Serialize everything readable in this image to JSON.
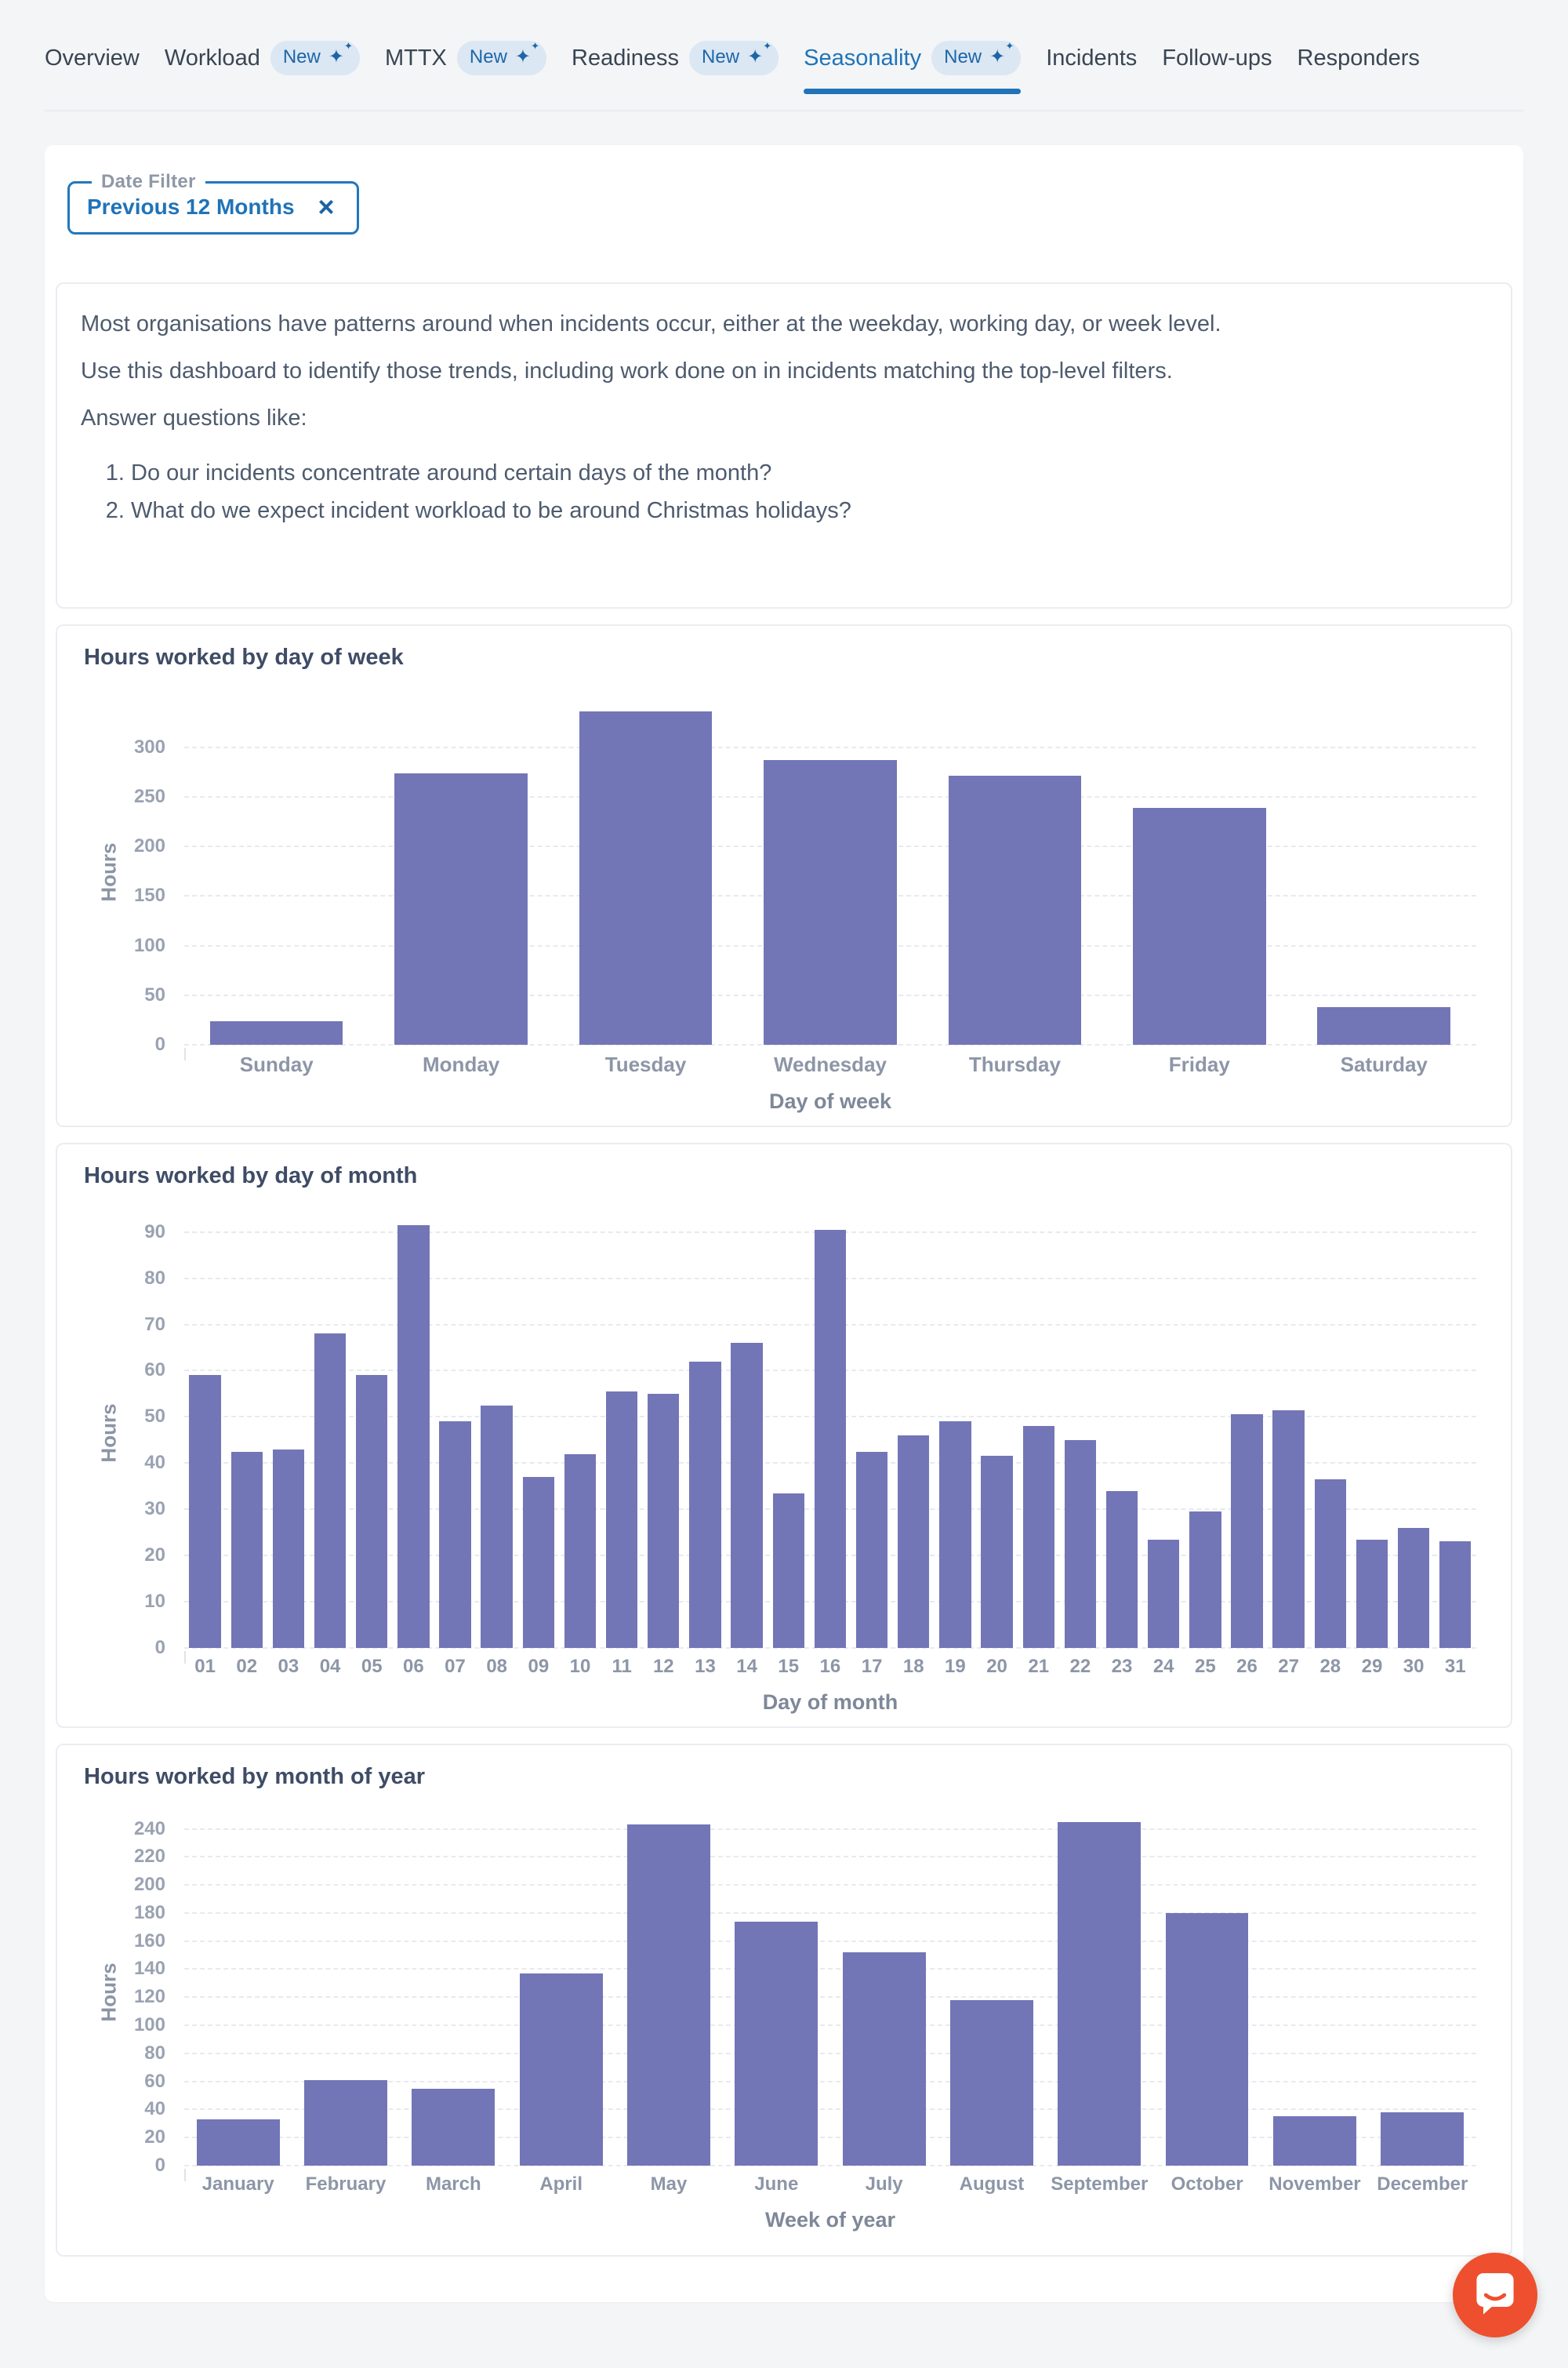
{
  "nav": {
    "items": [
      {
        "label": "Overview",
        "badge": false,
        "active": false
      },
      {
        "label": "Workload",
        "badge": true,
        "active": false
      },
      {
        "label": "MTTX",
        "badge": true,
        "active": false
      },
      {
        "label": "Readiness",
        "badge": true,
        "active": false
      },
      {
        "label": "Seasonality",
        "badge": true,
        "active": true
      },
      {
        "label": "Incidents",
        "badge": false,
        "active": false
      },
      {
        "label": "Follow-ups",
        "badge": false,
        "active": false
      },
      {
        "label": "Responders",
        "badge": false,
        "active": false
      }
    ],
    "badge_label": "New",
    "badge_icon": "sparkle-icon"
  },
  "filter": {
    "label": "Date Filter",
    "value": "Previous 12 Months",
    "clear_icon": "×"
  },
  "intro": {
    "paragraphs": [
      "Most organisations have patterns around when incidents occur, either at the weekday, working day, or week level.",
      "Use this dashboard to identify those trends, including work done on in incidents matching the top-level filters.",
      "Answer questions like:"
    ],
    "questions": [
      "Do our incidents concentrate around certain days of the month?",
      "What do we expect incident workload to be around Christmas holidays?"
    ]
  },
  "colors": {
    "bar": "#7276b6",
    "accent": "#2073b8",
    "badge_bg": "#dbe7f3",
    "chat_button": "#ee4f2e"
  },
  "chart_data": [
    {
      "type": "bar",
      "title": "Hours worked by day of week",
      "xlabel": "Day of week",
      "ylabel": "Hours",
      "categories": [
        "Sunday",
        "Monday",
        "Tuesday",
        "Wednesday",
        "Thursday",
        "Friday",
        "Saturday"
      ],
      "values": [
        24,
        274,
        336,
        287,
        271,
        239,
        38
      ],
      "ylim": [
        0,
        348
      ],
      "yticks": [
        0,
        50,
        100,
        150,
        200,
        250,
        300
      ],
      "grid": true,
      "legend": false
    },
    {
      "type": "bar",
      "title": "Hours worked by day of month",
      "xlabel": "Day of month",
      "ylabel": "Hours",
      "categories": [
        "01",
        "02",
        "03",
        "04",
        "05",
        "06",
        "07",
        "08",
        "09",
        "10",
        "11",
        "12",
        "13",
        "14",
        "15",
        "16",
        "17",
        "18",
        "19",
        "20",
        "21",
        "22",
        "23",
        "24",
        "25",
        "26",
        "27",
        "28",
        "29",
        "30",
        "31"
      ],
      "values": [
        59,
        42.5,
        43,
        68,
        59,
        91.5,
        49,
        52.5,
        37,
        42,
        55.5,
        55,
        62,
        66,
        33.5,
        90.5,
        42.5,
        46,
        49,
        41.5,
        48,
        45,
        34,
        23.5,
        29.5,
        50.5,
        51.5,
        36.5,
        23.5,
        26,
        23
      ],
      "ylim": [
        0,
        93
      ],
      "yticks": [
        0,
        10,
        20,
        30,
        40,
        50,
        60,
        70,
        80,
        90
      ],
      "grid": true,
      "legend": false
    },
    {
      "type": "bar",
      "title": "Hours worked by month of year",
      "xlabel": "Week of year",
      "ylabel": "Hours",
      "categories": [
        "January",
        "February",
        "March",
        "April",
        "May",
        "June",
        "July",
        "August",
        "September",
        "October",
        "November",
        "December"
      ],
      "values": [
        33,
        61,
        55,
        137,
        243,
        174,
        152,
        118,
        245,
        180,
        35,
        38
      ],
      "ylim": [
        0,
        247
      ],
      "yticks": [
        0,
        20,
        40,
        60,
        80,
        100,
        120,
        140,
        160,
        180,
        200,
        220,
        240
      ],
      "grid": true,
      "legend": false
    }
  ],
  "chat": {
    "icon": "chat-bubble-icon"
  }
}
